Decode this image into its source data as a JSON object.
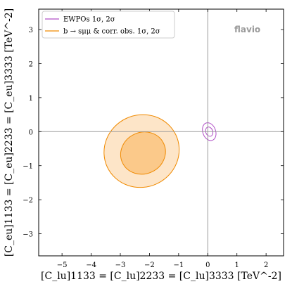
{
  "chart_data": {
    "type": "contour",
    "xlabel": "[C_lu]1133 = [C_lu]2233 = [C_lu]3333 [TeV^-2]",
    "ylabel": "[C_eu]1133 = [C_eu]2233 = [C_eu]3333 [TeV^-2]",
    "xlim": [
      -5.8,
      2.6
    ],
    "ylim": [
      -3.65,
      3.6
    ],
    "xticks": [
      "−5",
      "−4",
      "−3",
      "−2",
      "−1",
      "0",
      "1",
      "2"
    ],
    "yticks": [
      "−3",
      "−2",
      "−1",
      "0",
      "1",
      "2",
      "3"
    ],
    "xtick_values": [
      -5,
      -4,
      -3,
      -2,
      -1,
      0,
      1,
      2
    ],
    "ytick_values": [
      -3,
      -2,
      -1,
      0,
      1,
      2,
      3
    ],
    "reference_lines": {
      "x": 0,
      "y": 0
    },
    "watermark": "flavio",
    "legend": {
      "placement": "top-left",
      "entries": [
        {
          "label": "EWPOs 1σ, 2σ",
          "color": "#b04fc6"
        },
        {
          "label": "b → sμμ & corr. obs. 1σ, 2σ",
          "color": "#f08a00"
        }
      ]
    },
    "series": [
      {
        "name": "EWPOs 1σ, 2σ",
        "color": "#b04fc6",
        "regions": [
          {
            "level": "2σ",
            "center": [
              0.05,
              0.0
            ],
            "rx": 0.22,
            "ry": 0.27,
            "angle_deg": 20,
            "fill": "none"
          },
          {
            "level": "1σ",
            "center": [
              0.05,
              0.0
            ],
            "rx": 0.12,
            "ry": 0.14,
            "angle_deg": 20,
            "fill": "none"
          }
        ]
      },
      {
        "name": "b → sμμ & corr. obs. 1σ, 2σ",
        "color": "#f08a00",
        "regions": [
          {
            "level": "2σ",
            "center": [
              -2.27,
              -0.57
            ],
            "rx": 1.3,
            "ry": 1.06,
            "angle_deg": 25,
            "fill": "#fde5c8"
          },
          {
            "level": "1σ",
            "center": [
              -2.22,
              -0.63
            ],
            "rx": 0.78,
            "ry": 0.61,
            "angle_deg": 25,
            "fill": "#fbc98a"
          }
        ]
      }
    ]
  }
}
